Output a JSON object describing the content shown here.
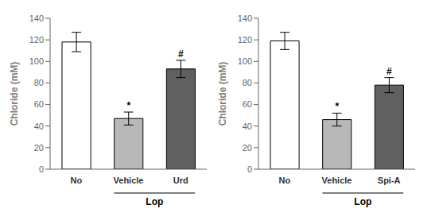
{
  "chart_data": [
    {
      "type": "bar",
      "categories": [
        "No",
        "Vehicle",
        "Urd"
      ],
      "values": [
        118,
        47,
        93
      ],
      "errors": [
        9,
        6,
        8
      ],
      "colors": [
        "#ffffff",
        "#b8b8b8",
        "#606060"
      ],
      "ylabel": "Chloride (mM)",
      "ylim": [
        0,
        140
      ],
      "yticks": [
        0,
        20,
        40,
        60,
        80,
        100,
        120,
        140
      ],
      "grid": false,
      "annotations": [
        {
          "text": "*",
          "category": "Vehicle"
        },
        {
          "text": "#",
          "category": "Urd"
        },
        {
          "text": "Lop",
          "span": [
            "Vehicle",
            "Urd"
          ]
        }
      ]
    },
    {
      "type": "bar",
      "categories": [
        "No",
        "Vehicle",
        "Spi-A"
      ],
      "values": [
        119,
        46,
        78
      ],
      "errors": [
        8,
        6,
        7
      ],
      "colors": [
        "#ffffff",
        "#b8b8b8",
        "#606060"
      ],
      "ylabel": "Chloride (mM)",
      "ylim": [
        0,
        140
      ],
      "yticks": [
        0,
        20,
        40,
        60,
        80,
        100,
        120,
        140
      ],
      "grid": false,
      "annotations": [
        {
          "text": "*",
          "category": "Vehicle"
        },
        {
          "text": "#",
          "category": "Spi-A"
        },
        {
          "text": "Lop",
          "span": [
            "Vehicle",
            "Spi-A"
          ]
        }
      ]
    }
  ]
}
